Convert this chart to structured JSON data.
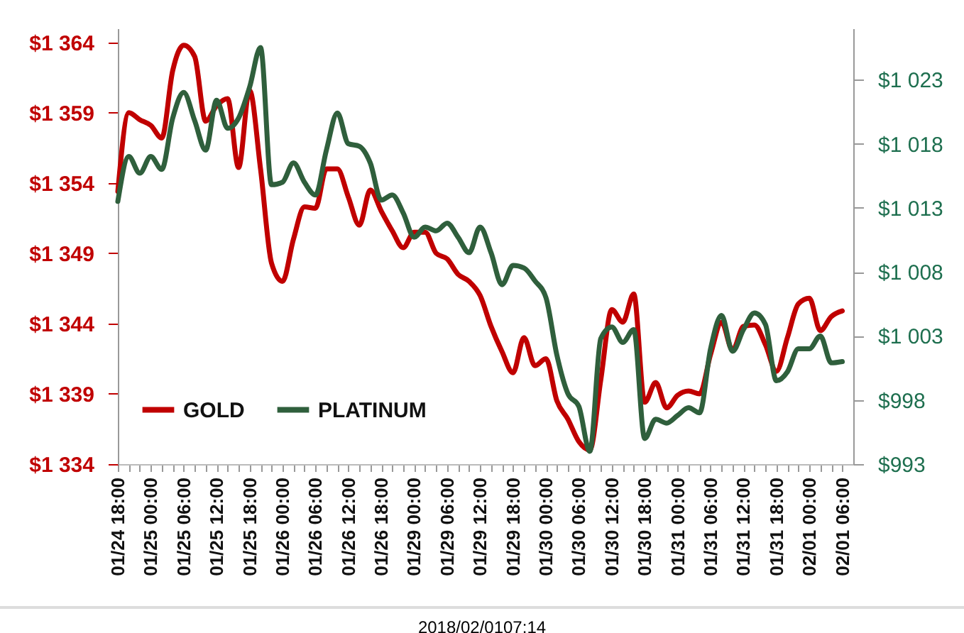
{
  "chart_data": {
    "type": "line",
    "categories": [
      "01/24 18:00",
      null,
      null,
      "01/25 00:00",
      null,
      null,
      "01/25 06:00",
      null,
      null,
      "01/25 12:00",
      null,
      null,
      "01/25 18:00",
      null,
      null,
      "01/26 00:00",
      null,
      null,
      "01/26 06:00",
      null,
      null,
      "01/26 12:00",
      null,
      null,
      "01/26 18:00",
      null,
      null,
      "01/29 00:00",
      null,
      null,
      "01/29 06:00",
      null,
      null,
      "01/29 12:00",
      null,
      null,
      "01/29 18:00",
      null,
      null,
      "01/30 00:00",
      null,
      null,
      "01/30 06:00",
      null,
      null,
      "01/30 12:00",
      null,
      null,
      "01/30 18:00",
      null,
      null,
      "01/31 00:00",
      null,
      null,
      "01/31 06:00",
      null,
      null,
      "01/31 12:00",
      null,
      null,
      "01/31 18:00",
      null,
      null,
      "02/01 00:00",
      null,
      null,
      "02/01 06:00"
    ],
    "series": [
      {
        "name": "GOLD",
        "color": "#c00000",
        "values": [
          1353.4,
          1359,
          1358.5,
          1358.1,
          1357.2,
          1362,
          1363.8,
          1363,
          1358.4,
          1359.5,
          1360,
          1355.1,
          1360.6,
          1355,
          1348.3,
          1347,
          1350,
          1352.3,
          1352.2,
          1355,
          1355,
          1353,
          1351,
          1353.5,
          1352,
          1350.6,
          1349.4,
          1350.5,
          1350.5,
          1349,
          1348.6,
          1347.5,
          1347,
          1346,
          1343.8,
          1342,
          1340.5,
          1343,
          1341,
          1341.5,
          1338.5,
          1337.2,
          1335.6,
          1335,
          1340,
          1345,
          1344.1,
          1346.1,
          1338.4,
          1339.8,
          1338,
          1338.9,
          1339.2,
          1339,
          1341.8,
          1344.1,
          1342.1,
          1343.8,
          1343.9,
          1342.5,
          1340.6,
          1343,
          1345.4,
          1345.8,
          1343.5,
          1344.5,
          1344.9
        ]
      },
      {
        "name": "PLATINUM",
        "color": "#2f5f3c",
        "axis": "y2",
        "values": [
          1013.5,
          1017,
          1015.7,
          1017,
          1016,
          1020,
          1022,
          1019.8,
          1017.5,
          1021.4,
          1019.2,
          1020,
          1022.4,
          1025.5,
          1014.8,
          1015,
          1016.5,
          1015,
          1014,
          1017.5,
          1020.4,
          1018,
          1017.8,
          1016.5,
          1013.6,
          1014,
          1012.6,
          1010.7,
          1011.5,
          1011.2,
          1011.8,
          1010.7,
          1009.5,
          1011.5,
          1009.5,
          1007,
          1008.5,
          1008.3,
          1007.3,
          1006,
          1001.5,
          998.5,
          997.5,
          994,
          1002.8,
          1003.7,
          1002.5,
          1003.5,
          995,
          996.5,
          996.2,
          996.8,
          997.4,
          997,
          1002,
          1004.6,
          1001.8,
          1003.5,
          1004.8,
          1003.9,
          999.5,
          1000.2,
          1002,
          1002,
          1003,
          1000.9,
          1001
        ]
      }
    ],
    "ylim": [
      1334,
      1365
    ],
    "yticks": [
      {
        "value": 1334,
        "label": "$1 334"
      },
      {
        "value": 1339,
        "label": "$1 339"
      },
      {
        "value": 1344,
        "label": "$1 344"
      },
      {
        "value": 1349,
        "label": "$1 349"
      },
      {
        "value": 1354,
        "label": "$1 354"
      },
      {
        "value": 1359,
        "label": "$1 359"
      },
      {
        "value": 1364,
        "label": "$1 364"
      }
    ],
    "y2lim": [
      993,
      1027
    ],
    "y2ticks": [
      {
        "value": 993,
        "label": "$993"
      },
      {
        "value": 998,
        "label": "$998"
      },
      {
        "value": 1003,
        "label": "$1 003"
      },
      {
        "value": 1008,
        "label": "$1 008"
      },
      {
        "value": 1013,
        "label": "$1 013"
      },
      {
        "value": 1018,
        "label": "$1 018"
      },
      {
        "value": 1023,
        "label": "$1 023"
      }
    ],
    "legend": "bottom left",
    "grid": false,
    "annotations": [
      "2018/02/0107:14"
    ]
  }
}
